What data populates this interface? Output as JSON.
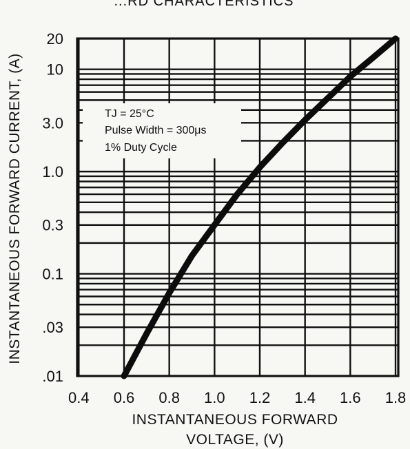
{
  "chart_data": {
    "type": "line",
    "title": "...RD CHARACTERISTICS",
    "xlabel_line1": "INSTANTANEOUS FORWARD",
    "xlabel_line2": "VOLTAGE, (V)",
    "ylabel": "INSTANTANEOUS FORWARD CURRENT, (A)",
    "xlim": [
      0.4,
      1.8
    ],
    "ylim": [
      0.01,
      20
    ],
    "yscale": "log",
    "grid": true,
    "x_ticks": [
      0.4,
      0.6,
      0.8,
      1.0,
      1.2,
      1.4,
      1.6,
      1.8
    ],
    "x_tick_labels": [
      "0.4",
      "0.6",
      "0.8",
      "1.0",
      "1.2",
      "1.4",
      "1.6",
      "1.8"
    ],
    "y_ticks": [
      0.01,
      0.03,
      0.1,
      0.3,
      1.0,
      3.0,
      10,
      20
    ],
    "y_tick_labels": [
      ".01",
      ".03",
      "0.1",
      "0.3",
      "1.0",
      "3.0",
      "10",
      "20"
    ],
    "y_gridlines": [
      0.01,
      0.02,
      0.03,
      0.04,
      0.05,
      0.06,
      0.07,
      0.08,
      0.09,
      0.1,
      0.2,
      0.3,
      0.4,
      0.5,
      0.6,
      0.7,
      0.8,
      0.9,
      1,
      2,
      3,
      4,
      5,
      6,
      7,
      8,
      9,
      10,
      20
    ],
    "annotation": {
      "line1": "TJ = 25°C",
      "line2": "Pulse Width = 300μs",
      "line3": "1% Duty Cycle"
    },
    "series": [
      {
        "x": [
          0.6,
          0.7,
          0.8,
          0.9,
          1.0,
          1.1,
          1.2,
          1.3,
          1.4,
          1.5,
          1.6,
          1.7,
          1.8
        ],
        "y": [
          0.01,
          0.026,
          0.065,
          0.15,
          0.3,
          0.6,
          1.1,
          1.9,
          3.2,
          5.2,
          8.5,
          13,
          20
        ]
      }
    ]
  }
}
